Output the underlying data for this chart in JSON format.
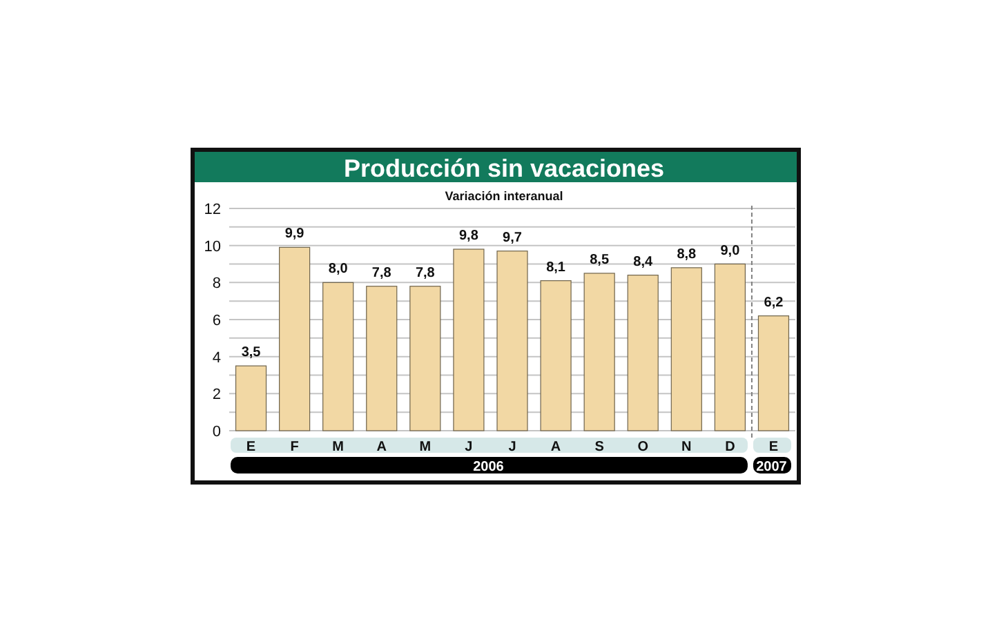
{
  "chart_data": {
    "type": "bar",
    "title": "Producción sin vacaciones",
    "subtitle": "Variación interanual",
    "categories": [
      "E",
      "F",
      "M",
      "A",
      "M",
      "J",
      "J",
      "A",
      "S",
      "O",
      "N",
      "D",
      "E"
    ],
    "values": [
      3.5,
      9.9,
      8.0,
      7.8,
      7.8,
      9.8,
      9.7,
      8.1,
      8.5,
      8.4,
      8.8,
      9.0,
      6.2
    ],
    "value_labels": [
      "3,5",
      "9,9",
      "8,0",
      "7,8",
      "7,8",
      "9,8",
      "9,7",
      "8,1",
      "8,5",
      "8,4",
      "8,8",
      "9,0",
      "6,2"
    ],
    "color": "#f2d8a4",
    "ylim": [
      0,
      12
    ],
    "yticks": [
      0,
      {
        "value": 1,
        "label": null
      },
      2,
      {
        "value": 3,
        "label": null
      },
      4,
      {
        "value": 5,
        "label": null
      },
      6,
      {
        "value": 7,
        "label": null
      },
      8,
      {
        "value": 9,
        "label": null
      },
      10,
      {
        "value": 11,
        "label": null
      },
      12
    ],
    "grid": "y",
    "annotations": [
      "2006",
      "2007"
    ]
  }
}
